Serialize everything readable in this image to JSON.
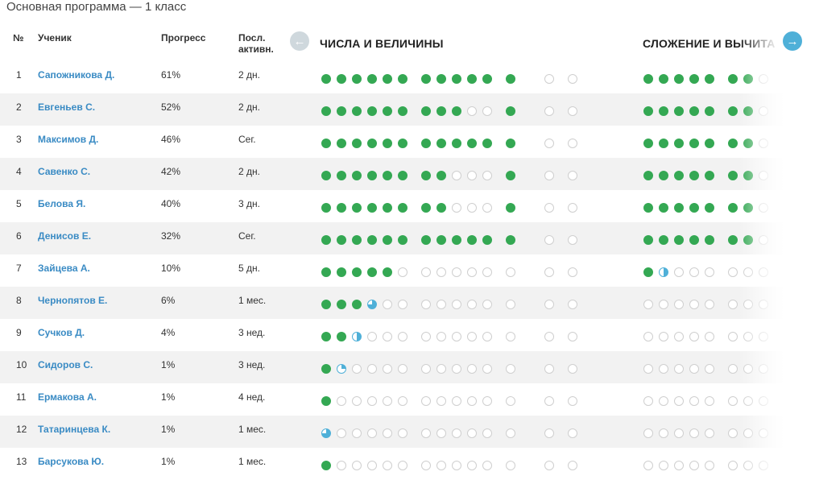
{
  "page_title": "Основная программа — 1 класс",
  "columns": {
    "num": "№",
    "student": "Ученик",
    "progress": "Прогресс",
    "last_activity_line1": "Посл.",
    "last_activity_line2": "активн."
  },
  "sections": [
    {
      "title": "ЧИСЛА И ВЕЛИЧИНЫ"
    },
    {
      "title": "СЛОЖЕНИЕ И ВЫЧИТА"
    }
  ],
  "nav": {
    "prev_icon": "arrow-left-icon",
    "next_icon": "arrow-right-icon"
  },
  "colors": {
    "done": "#34a853",
    "partial": "#4fb0d8",
    "empty": "#cfcfcf",
    "link": "#3a8bc4"
  },
  "students": [
    {
      "num": "1",
      "name": "Сапожникова Д.",
      "progress": "61%",
      "activity": "2 дн.",
      "s1": [
        6,
        5,
        1,
        0
      ],
      "s2": [
        5,
        2,
        0
      ]
    },
    {
      "num": "2",
      "name": "Евгеньев С.",
      "progress": "52%",
      "activity": "2 дн.",
      "s1": [
        6,
        3,
        1,
        0
      ],
      "s2": [
        5,
        2,
        0
      ]
    },
    {
      "num": "3",
      "name": "Максимов Д.",
      "progress": "46%",
      "activity": "Сег.",
      "s1": [
        6,
        5,
        1,
        0
      ],
      "s2": [
        5,
        2,
        0
      ]
    },
    {
      "num": "4",
      "name": "Савенко С.",
      "progress": "42%",
      "activity": "2 дн.",
      "s1": [
        6,
        2,
        1,
        0
      ],
      "s2": [
        5,
        2,
        0
      ]
    },
    {
      "num": "5",
      "name": "Белова Я.",
      "progress": "40%",
      "activity": "3 дн.",
      "s1": [
        6,
        2,
        1,
        0
      ],
      "s2": [
        5,
        2,
        0
      ]
    },
    {
      "num": "6",
      "name": "Денисов Е.",
      "progress": "32%",
      "activity": "Сег.",
      "s1": [
        6,
        5,
        1,
        0
      ],
      "s2": [
        5,
        2,
        0
      ]
    },
    {
      "num": "7",
      "name": "Зайцева А.",
      "progress": "10%",
      "activity": "5 дн.",
      "s1": [
        5,
        0,
        0,
        0
      ],
      "s2": [
        1,
        0,
        0
      ],
      "s2_partial": 0.5
    },
    {
      "num": "8",
      "name": "Чернопятов Е.",
      "progress": "6%",
      "activity": "1 мес.",
      "s1": [
        3,
        0,
        0,
        0
      ],
      "s1_partial": 0.75,
      "s2": [
        0,
        0,
        0
      ]
    },
    {
      "num": "9",
      "name": "Сучков Д.",
      "progress": "4%",
      "activity": "3 нед.",
      "s1": [
        2,
        0,
        0,
        0
      ],
      "s1_partial": 0.5,
      "s2": [
        0,
        0,
        0
      ]
    },
    {
      "num": "10",
      "name": "Сидоров С.",
      "progress": "1%",
      "activity": "3 нед.",
      "s1": [
        1,
        0,
        0,
        0
      ],
      "s1_partial": 0.25,
      "s2": [
        0,
        0,
        0
      ]
    },
    {
      "num": "11",
      "name": "Ермакова А.",
      "progress": "1%",
      "activity": "4 нед.",
      "s1": [
        1,
        0,
        0,
        0
      ],
      "s2": [
        0,
        0,
        0
      ]
    },
    {
      "num": "12",
      "name": "Татаринцева К.",
      "progress": "1%",
      "activity": "1 мес.",
      "s1": [
        0,
        0,
        0,
        0
      ],
      "s1_partial": 0.75,
      "s2": [
        0,
        0,
        0
      ]
    },
    {
      "num": "13",
      "name": "Барсукова Ю.",
      "progress": "1%",
      "activity": "1 мес.",
      "s1": [
        1,
        0,
        0,
        0
      ],
      "s2": [
        0,
        0,
        0
      ]
    }
  ]
}
